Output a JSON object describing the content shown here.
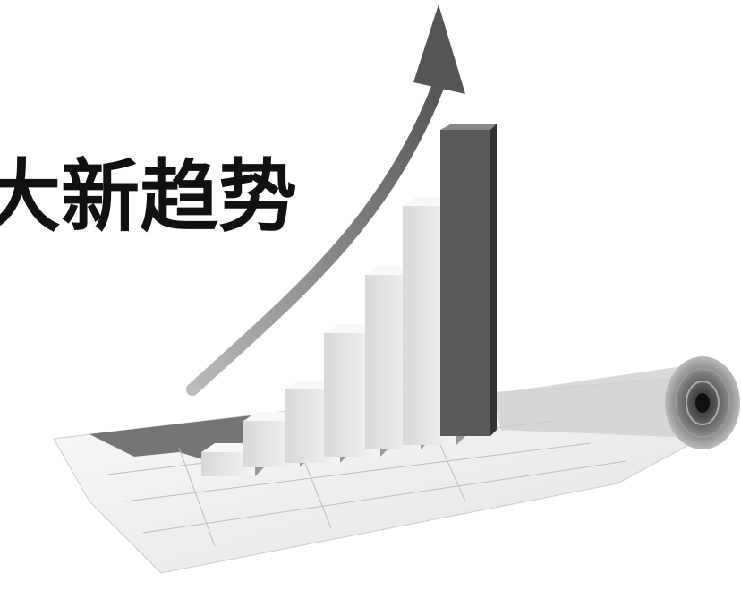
{
  "title": "大新趋势"
}
